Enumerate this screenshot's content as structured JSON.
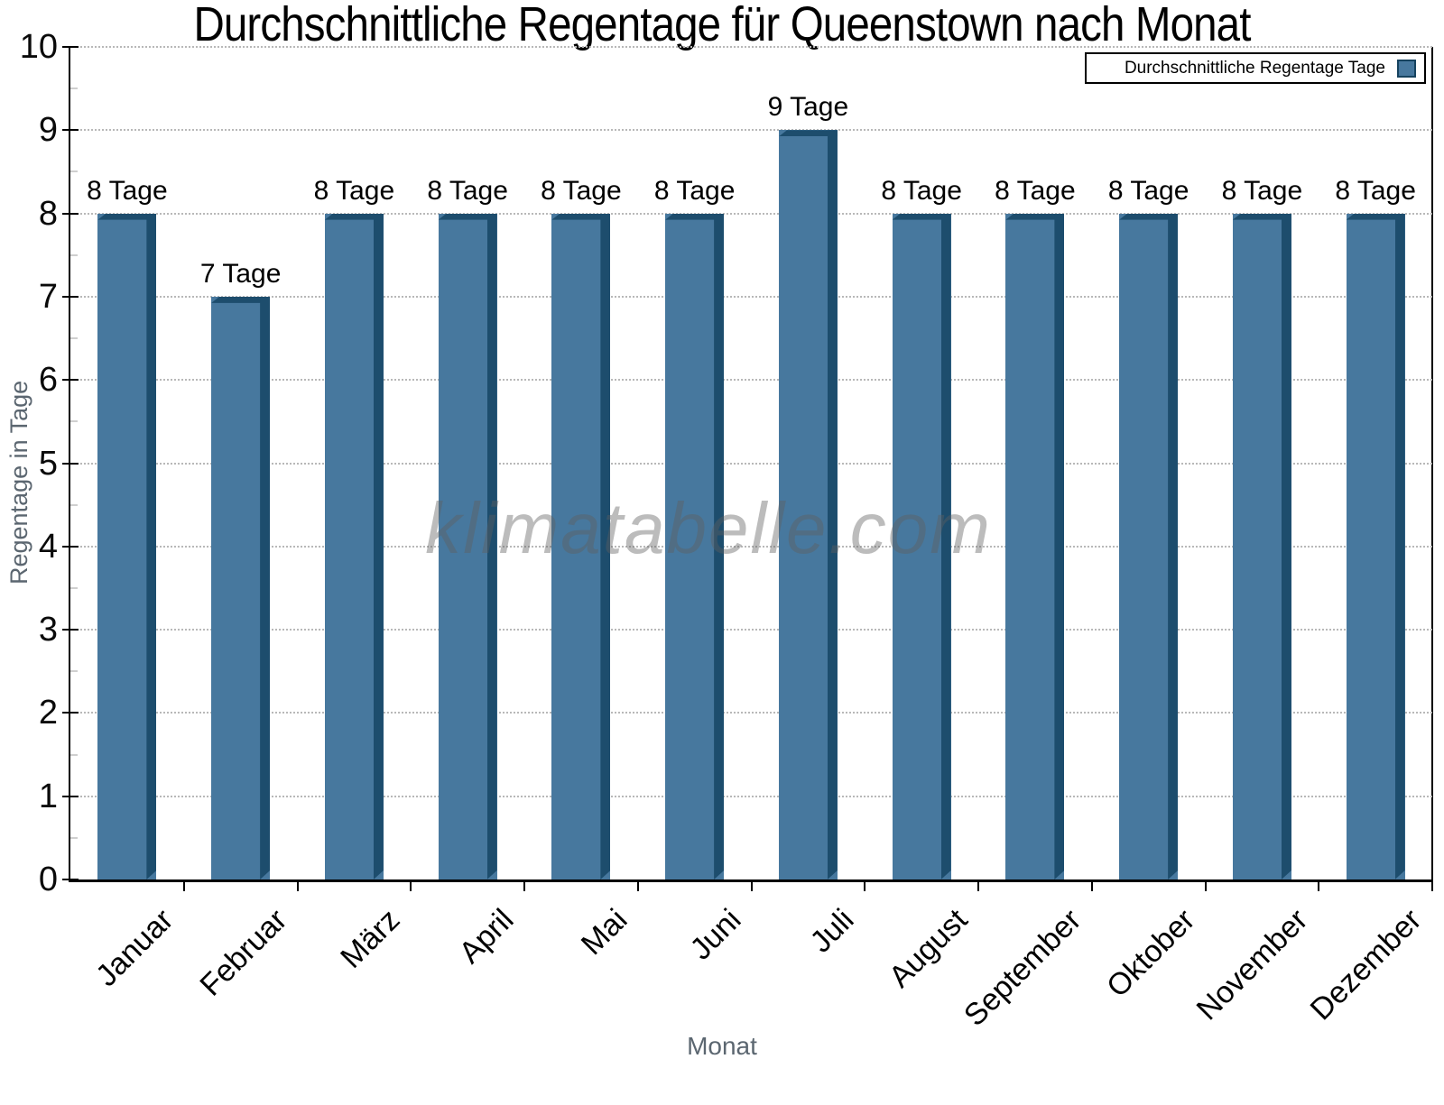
{
  "title": "Durchschnittliche Regentage für Queenstown nach Monat",
  "watermark": "klimatabelle.com",
  "legend": {
    "label": "Durchschnittliche Regentage Tage"
  },
  "y_axis": {
    "title": "Regentage in Tage",
    "ticks": [
      "0",
      "1",
      "2",
      "3",
      "4",
      "5",
      "6",
      "7",
      "8",
      "9",
      "10"
    ]
  },
  "x_axis": {
    "title": "Monat"
  },
  "chart_data": {
    "type": "bar",
    "title": "Durchschnittliche Regentage für Queenstown nach Monat",
    "categories": [
      "Januar",
      "Februar",
      "März",
      "April",
      "Mai",
      "Juni",
      "Juli",
      "August",
      "September",
      "Oktober",
      "November",
      "Dezember"
    ],
    "series": [
      {
        "name": "Durchschnittliche Regentage Tage",
        "values": [
          8,
          7,
          8,
          8,
          8,
          8,
          9,
          8,
          8,
          8,
          8,
          8
        ]
      }
    ],
    "bar_labels": [
      "8 Tage",
      "7 Tage",
      "8 Tage",
      "8 Tage",
      "8 Tage",
      "8 Tage",
      "9 Tage",
      "8 Tage",
      "8 Tage",
      "8 Tage",
      "8 Tage",
      "8 Tage"
    ],
    "xlabel": "Monat",
    "ylabel": "Regentage in Tage",
    "ylim": [
      0,
      10
    ],
    "yticks": [
      0,
      1,
      2,
      3,
      4,
      5,
      6,
      7,
      8,
      9,
      10
    ],
    "grid": "horizontal-dotted",
    "legend_position": "top-right",
    "colors": {
      "bar_face": "#47789E",
      "bar_edge": "#1D4D6D",
      "grid": "#B8B8B8",
      "axis_title_text": "#5B6670",
      "tick_text": "#0A0A0A",
      "watermark_text": "#5F5F5F"
    }
  }
}
